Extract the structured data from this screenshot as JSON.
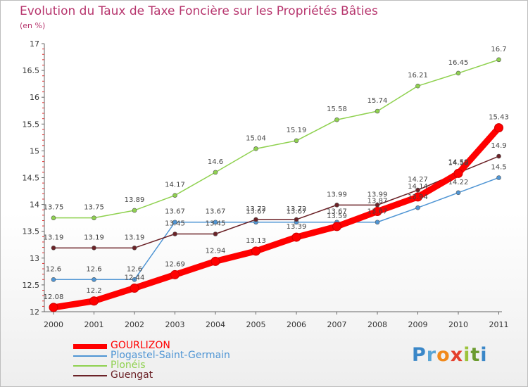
{
  "header": {
    "title": "Evolution du Taux de Taxe Foncière sur les Propriétés Bâties",
    "subtitle": "(en %)"
  },
  "logo": {
    "text": "Proxiti",
    "letters": [
      "P",
      "r",
      "o",
      "x",
      "i",
      "t",
      "i"
    ]
  },
  "chart_data": {
    "type": "line",
    "title": "Evolution du Taux de Taxe Foncière sur les Propriétés Bâties",
    "ylabel": "(en %)",
    "xlabel": "",
    "x": [
      "2000",
      "2001",
      "2002",
      "2003",
      "2004",
      "2005",
      "2006",
      "2007",
      "2008",
      "2009",
      "2010",
      "2011"
    ],
    "ylim": [
      12,
      17
    ],
    "yticks": [
      "12",
      "12.5",
      "13",
      "13.5",
      "14",
      "14.5",
      "15",
      "15.5",
      "16",
      "16.5",
      "17"
    ],
    "grid": false,
    "legend_position": "bottom-left",
    "series": [
      {
        "name": "GOURLIZON",
        "color": "#ff0000",
        "values": [
          12.08,
          12.2,
          12.44,
          12.69,
          12.94,
          13.13,
          13.39,
          13.59,
          13.87,
          14.14,
          14.58,
          15.43
        ],
        "labels": [
          "12.08",
          "12.2",
          "12.44",
          "12.69",
          "12.94",
          "13.13",
          "13.39",
          "13.59",
          "13.87",
          "14.14",
          "14.58",
          "15.43"
        ]
      },
      {
        "name": "Plogastel-Saint-Germain",
        "color": "#4f95d4",
        "values": [
          12.6,
          12.6,
          12.6,
          13.67,
          13.67,
          13.67,
          13.67,
          13.67,
          13.67,
          13.94,
          14.22,
          14.5
        ],
        "labels": [
          "12.6",
          "12.6",
          "12.6",
          "13.67",
          "13.67",
          "13.67",
          "13.67",
          "13.67",
          "13.67",
          "13.94",
          "14.22",
          "14.5"
        ]
      },
      {
        "name": "Plonéis",
        "color": "#8fd14f",
        "values": [
          13.75,
          13.75,
          13.89,
          14.17,
          14.6,
          15.04,
          15.19,
          15.58,
          15.74,
          16.21,
          16.45,
          16.7
        ],
        "labels": [
          "13.75",
          "13.75",
          "13.89",
          "14.17",
          "14.6",
          "15.04",
          "15.19",
          "15.58",
          "15.74",
          "16.21",
          "16.45",
          "16.7"
        ]
      },
      {
        "name": "Guengat",
        "color": "#6b2227",
        "values": [
          13.19,
          13.19,
          13.19,
          13.45,
          13.45,
          13.72,
          13.72,
          13.99,
          13.99,
          14.27,
          14.59,
          14.9
        ],
        "labels": [
          "13.19",
          "13.19",
          "13.19",
          "13.45",
          "13.45",
          "13.72",
          "13.72",
          "13.99",
          "13.99",
          "14.27",
          "14.59",
          "14.9"
        ]
      }
    ]
  }
}
